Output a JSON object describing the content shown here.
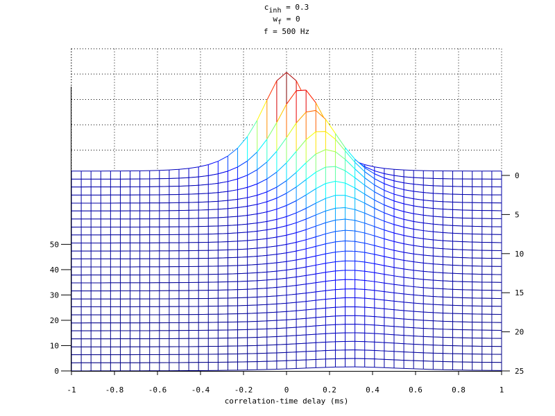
{
  "chart_data": {
    "type": "mesh",
    "title": {
      "line1_main": "c",
      "line1_sub": "inh",
      "line1_rest": " = 0.3",
      "line2_main": "w",
      "line2_sub": "f",
      "line2_rest": " = 0",
      "line3": "f = 500 Hz"
    },
    "xlabel": "correlation-time delay (ms)",
    "xlim": [
      -1,
      1
    ],
    "x_ticks": [
      "-1",
      "-0.8",
      "-0.6",
      "-0.4",
      "-0.2",
      "0",
      "0.2",
      "0.4",
      "0.6",
      "0.8",
      "1"
    ],
    "y_ticks": [
      "0",
      "5",
      "10",
      "15",
      "20",
      "25"
    ],
    "ylim": [
      0,
      25
    ],
    "z_ticks": [
      "0",
      "10",
      "20",
      "30",
      "40",
      "50"
    ],
    "zlim": [
      0,
      50
    ],
    "grid": true,
    "colormap": "jet",
    "x_points": 45,
    "rows": [
      0,
      1,
      2,
      3,
      4,
      5,
      6,
      7,
      8,
      9,
      10,
      11,
      12,
      13,
      14,
      15,
      16,
      17,
      18,
      19,
      20,
      21,
      22,
      23,
      24,
      25
    ],
    "peak_delay_ms": [
      0,
      0.07,
      0.12,
      0.16,
      0.19,
      0.21,
      0.23,
      0.25,
      0.26,
      0.27,
      0.28,
      0.28,
      0.29,
      0.29,
      0.29,
      0.29,
      0.3,
      0.3,
      0.3,
      0.3,
      0.3,
      0.3,
      0.3,
      0.3,
      0.3,
      0.3
    ],
    "peak_height": [
      40.7,
      37.4,
      32.1,
      27.0,
      22.6,
      19.1,
      16.2,
      13.9,
      12.0,
      10.5,
      9.2,
      8.1,
      7.2,
      6.4,
      5.8,
      5.2,
      4.6,
      4.2,
      3.7,
      3.3,
      3.0,
      2.7,
      2.4,
      2.1,
      1.8,
      1.6
    ],
    "baseline": [
      1.7,
      1.6,
      1.6,
      1.5,
      1.4,
      1.4,
      1.3,
      1.2,
      1.2,
      1.1,
      1.0,
      1.0,
      0.9,
      0.8,
      0.8,
      0.7,
      0.6,
      0.6,
      0.5,
      0.4,
      0.4,
      0.3,
      0.2,
      0.2,
      0.1,
      0.0
    ],
    "peak_fwhm_ms": [
      0.28,
      0.29,
      0.31,
      0.32,
      0.33,
      0.35,
      0.36,
      0.37,
      0.39,
      0.4,
      0.41,
      0.42,
      0.44,
      0.45,
      0.46,
      0.48,
      0.49,
      0.5,
      0.52,
      0.53,
      0.54,
      0.56,
      0.57,
      0.58,
      0.6,
      0.61
    ]
  }
}
